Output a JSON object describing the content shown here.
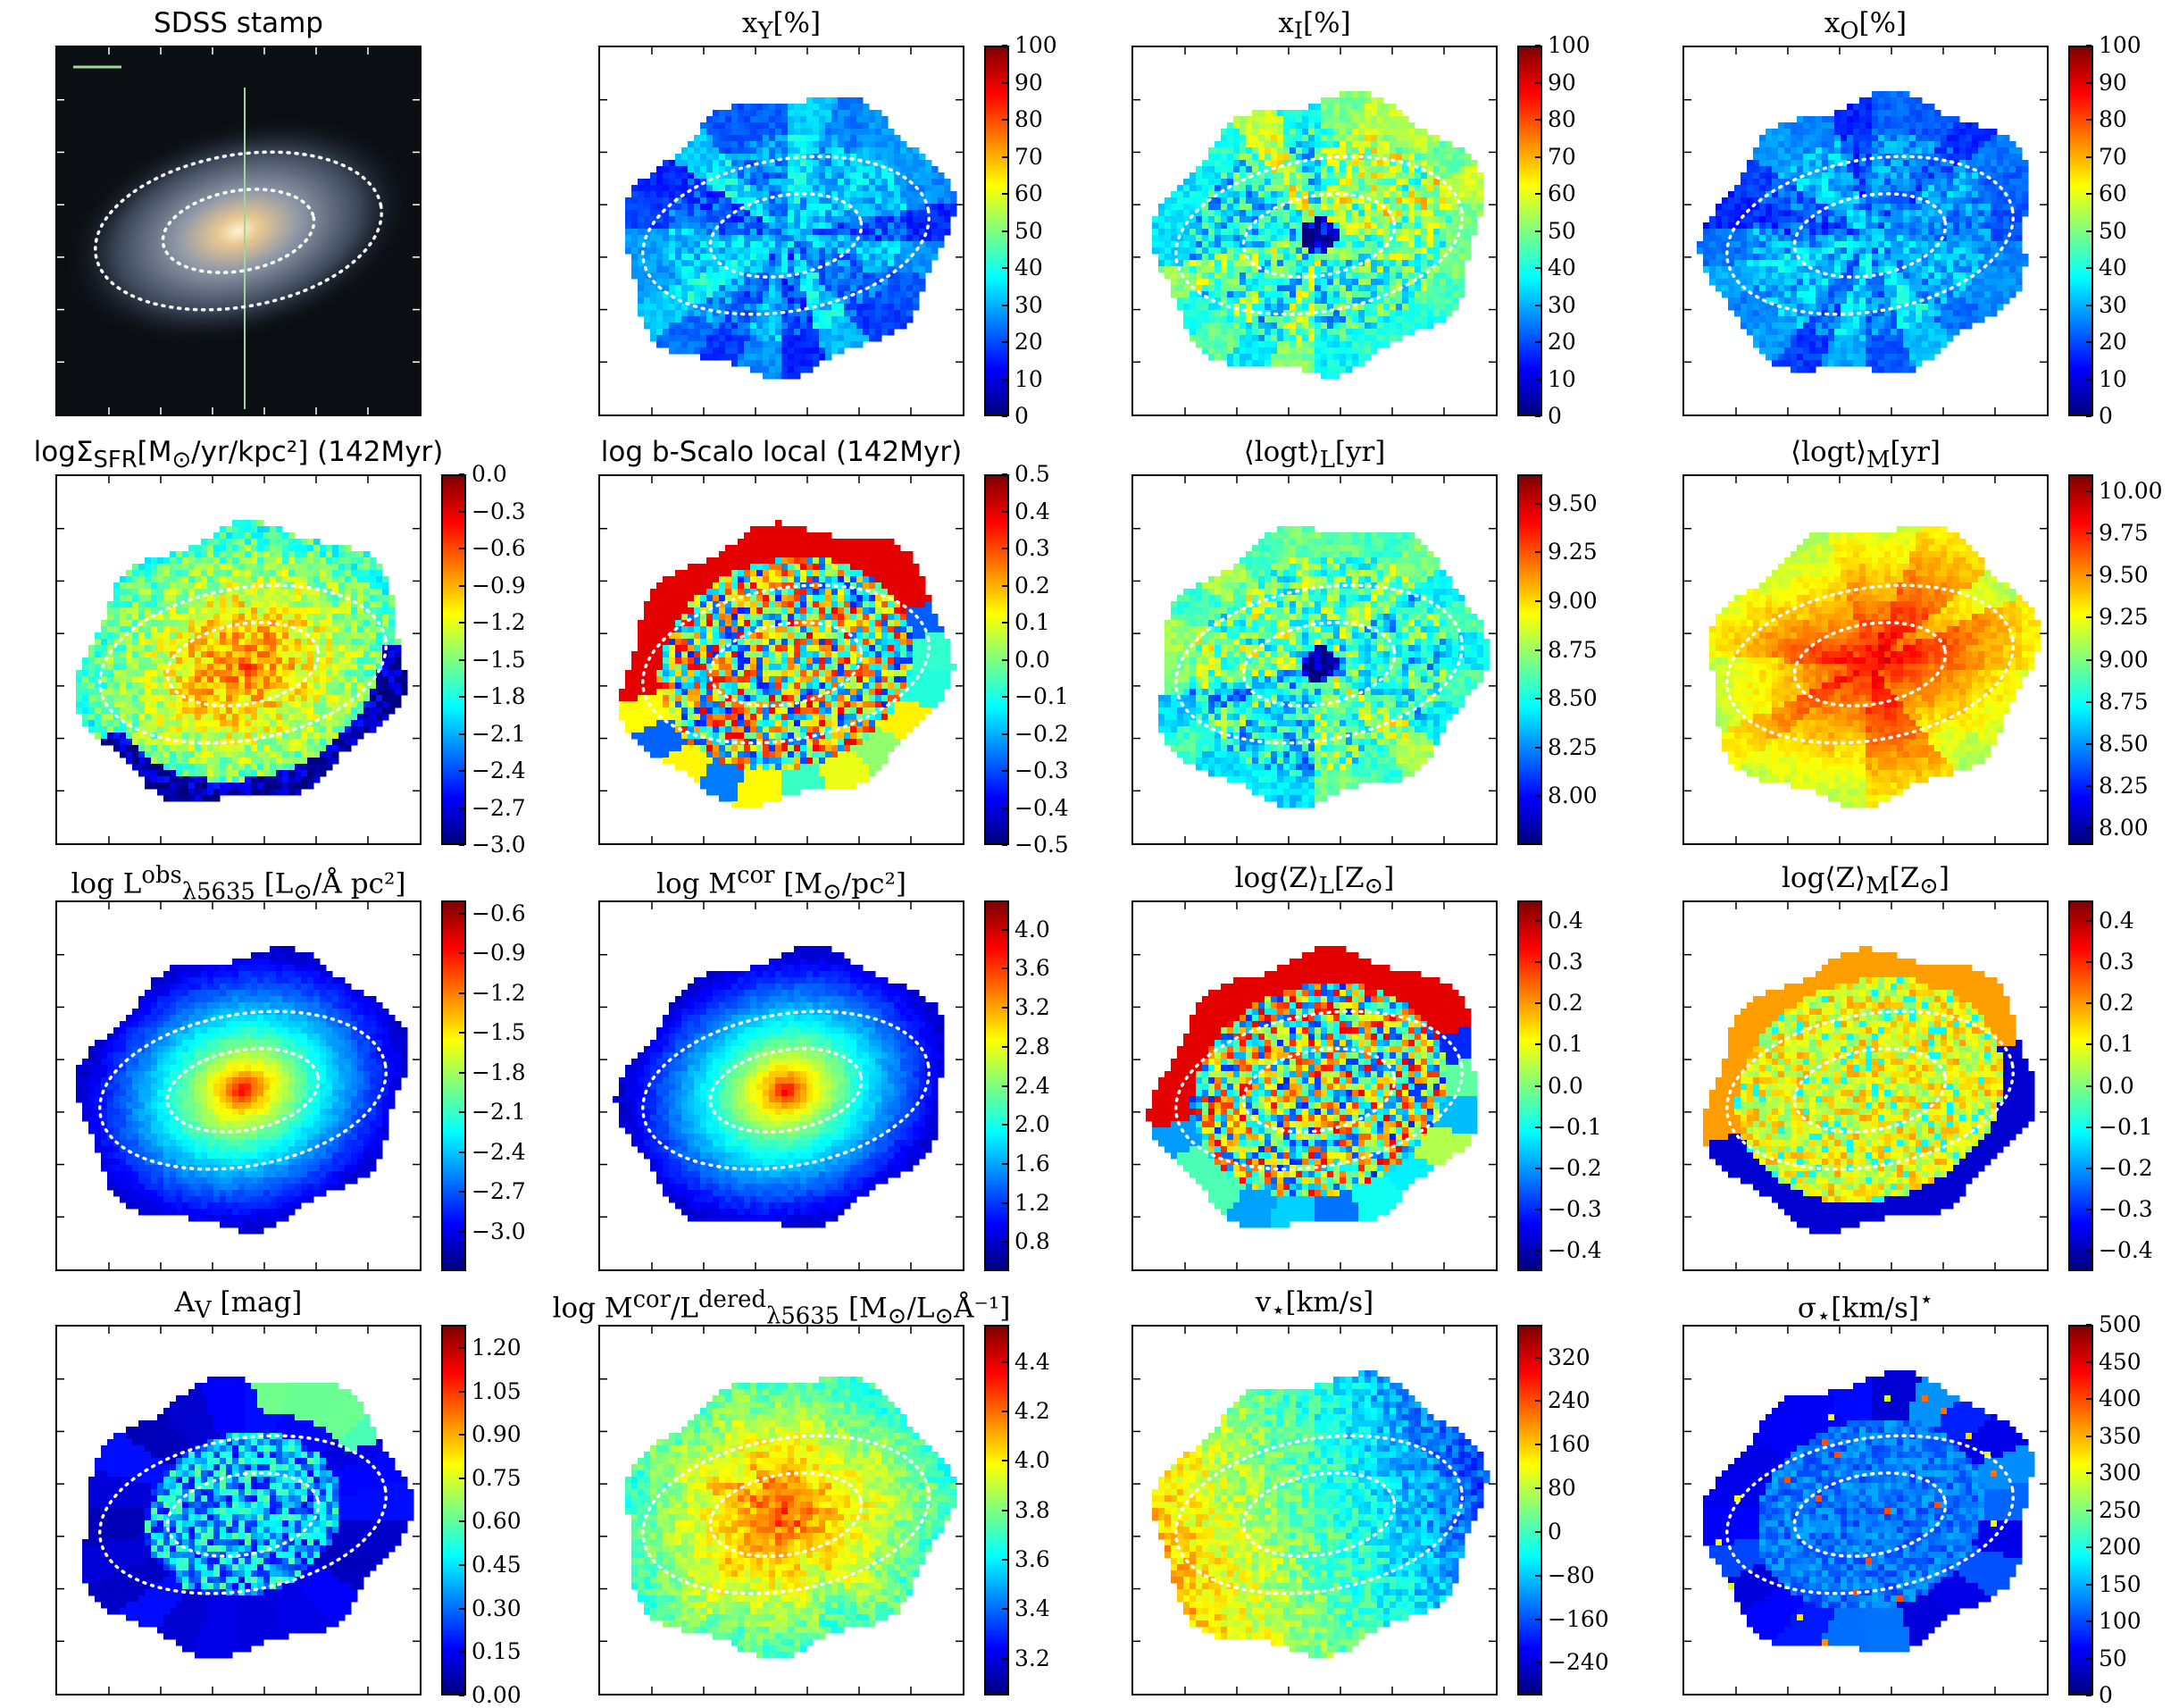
{
  "colors": {
    "jet": [
      "#00007f",
      "#0000ff",
      "#007fff",
      "#00ffff",
      "#7fff7f",
      "#ffff00",
      "#ff7f00",
      "#ff0000",
      "#7f0000"
    ]
  },
  "chart_data": [
    {
      "id": "sdss",
      "type": "image",
      "title": "SDSS stamp",
      "ticks": []
    },
    {
      "id": "xY",
      "type": "heatmap",
      "title": "x_Y[%]",
      "ticks": [
        "100",
        "90",
        "80",
        "70",
        "60",
        "50",
        "40",
        "30",
        "20",
        "10",
        "0"
      ],
      "vmin": 0,
      "vmax": 100,
      "pattern": "low"
    },
    {
      "id": "xI",
      "type": "heatmap",
      "title": "x_I[%]",
      "ticks": [
        "100",
        "90",
        "80",
        "70",
        "60",
        "50",
        "40",
        "30",
        "20",
        "10",
        "0"
      ],
      "vmin": 0,
      "vmax": 100,
      "pattern": "mid"
    },
    {
      "id": "xO",
      "type": "heatmap",
      "title": "x_O[%]",
      "ticks": [
        "100",
        "90",
        "80",
        "70",
        "60",
        "50",
        "40",
        "30",
        "20",
        "10",
        "0"
      ],
      "vmin": 0,
      "vmax": 100,
      "pattern": "low"
    },
    {
      "id": "sfr",
      "type": "heatmap",
      "title": "logΣ_SFR[M_⊙/yr/kpc²] (142Myr)",
      "ticks": [
        "0.0",
        "−0.3",
        "−0.6",
        "−0.9",
        "−1.2",
        "−1.5",
        "−1.8",
        "−2.1",
        "−2.4",
        "−2.7",
        "−3.0"
      ],
      "vmin": -3.0,
      "vmax": 0.0,
      "pattern": "sfr"
    },
    {
      "id": "bscalo",
      "type": "heatmap",
      "title": "log b-Scalo local (142Myr)",
      "ticks": [
        "0.5",
        "0.4",
        "0.3",
        "0.2",
        "0.1",
        "0.0",
        "−0.1",
        "−0.2",
        "−0.3",
        "−0.4",
        "−0.5"
      ],
      "vmin": -0.5,
      "vmax": 0.5,
      "pattern": "noisy"
    },
    {
      "id": "tL",
      "type": "heatmap",
      "title": "⟨logt⟩_L[yr]",
      "ticks": [
        "9.50",
        "9.25",
        "9.00",
        "8.75",
        "8.50",
        "8.25",
        "8.00"
      ],
      "vmin": 7.75,
      "vmax": 9.65,
      "pattern": "mid"
    },
    {
      "id": "tM",
      "type": "heatmap",
      "title": "⟨logt⟩_M[yr]",
      "ticks": [
        "10.00",
        "9.75",
        "9.50",
        "9.25",
        "9.00",
        "8.75",
        "8.50",
        "8.25",
        "8.00"
      ],
      "vmin": 7.9,
      "vmax": 10.1,
      "pattern": "high"
    },
    {
      "id": "L",
      "type": "heatmap",
      "title": "log L^obs_λ5635 [L_⊙/Å pc²]",
      "ticks": [
        "−0.6",
        "−0.9",
        "−1.2",
        "−1.5",
        "−1.8",
        "−2.1",
        "−2.4",
        "−2.7",
        "−3.0"
      ],
      "vmin": -3.3,
      "vmax": -0.5,
      "pattern": "smooth"
    },
    {
      "id": "M",
      "type": "heatmap",
      "title": "log M^cor [M_⊙/pc²]",
      "ticks": [
        "4.0",
        "3.6",
        "3.2",
        "2.8",
        "2.4",
        "2.0",
        "1.6",
        "1.2",
        "0.8"
      ],
      "vmin": 0.5,
      "vmax": 4.3,
      "pattern": "smooth"
    },
    {
      "id": "ZL",
      "type": "heatmap",
      "title": "log⟨Z⟩_L[Z_⊙]",
      "ticks": [
        "0.4",
        "0.3",
        "0.2",
        "0.1",
        "0.0",
        "−0.1",
        "−0.2",
        "−0.3",
        "−0.4"
      ],
      "vmin": -0.45,
      "vmax": 0.45,
      "pattern": "noisy"
    },
    {
      "id": "ZM",
      "type": "heatmap",
      "title": "log⟨Z⟩_M[Z_⊙]",
      "ticks": [
        "0.4",
        "0.3",
        "0.2",
        "0.1",
        "0.0",
        "−0.1",
        "−0.2",
        "−0.3",
        "−0.4"
      ],
      "vmin": -0.45,
      "vmax": 0.45,
      "pattern": "zm"
    },
    {
      "id": "AV",
      "type": "heatmap",
      "title": "A_V [mag]",
      "ticks": [
        "1.20",
        "1.05",
        "0.90",
        "0.75",
        "0.60",
        "0.45",
        "0.30",
        "0.15",
        "0.00"
      ],
      "vmin": 0.0,
      "vmax": 1.28,
      "pattern": "av"
    },
    {
      "id": "ML",
      "type": "heatmap",
      "title": "log M^cor/L^dered_λ5635 [M_⊙/L_⊙Å⁻¹]",
      "ticks": [
        "4.4",
        "4.2",
        "4.0",
        "3.8",
        "3.6",
        "3.4",
        "3.2"
      ],
      "vmin": 3.05,
      "vmax": 4.55,
      "pattern": "ml"
    },
    {
      "id": "v",
      "type": "heatmap",
      "title": "v_⋆[km/s]",
      "ticks": [
        "320",
        "240",
        "160",
        "80",
        "0",
        "−80",
        "−160",
        "−240"
      ],
      "vmin": -300,
      "vmax": 380,
      "pattern": "vel"
    },
    {
      "id": "sigma",
      "type": "heatmap",
      "title": "σ_⋆[km/s]^⋆",
      "ticks": [
        "500",
        "450",
        "400",
        "350",
        "300",
        "250",
        "200",
        "150",
        "100",
        "50",
        "0"
      ],
      "vmin": 0,
      "vmax": 500,
      "pattern": "sigma"
    }
  ]
}
